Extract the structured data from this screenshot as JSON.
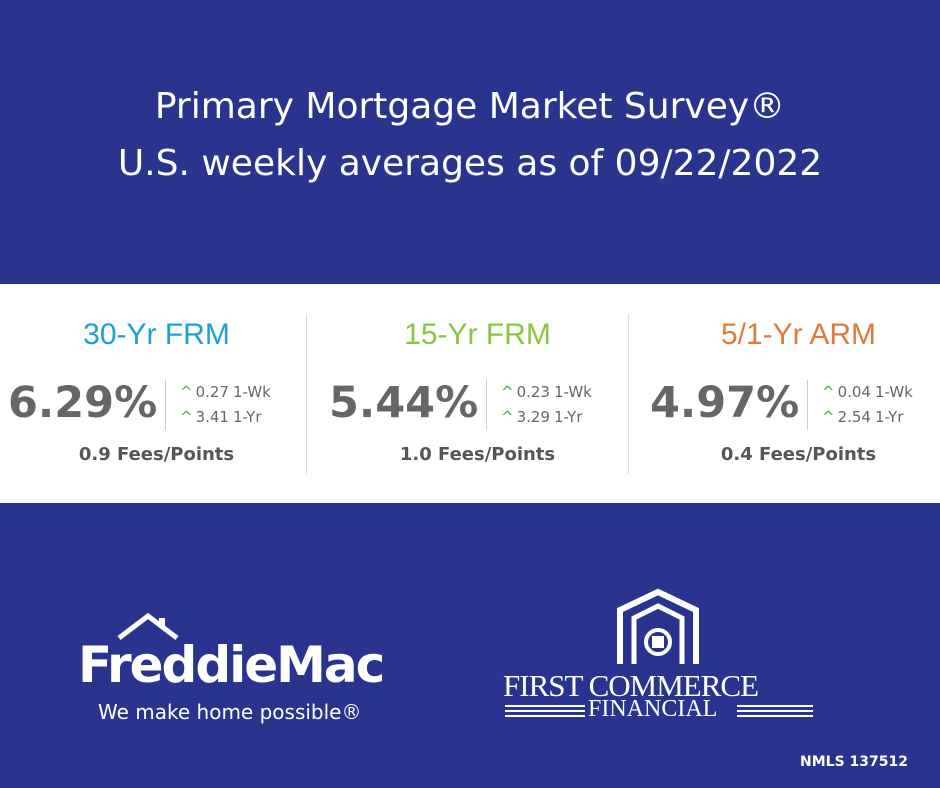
{
  "header": {
    "title": [
      "Primary Mortgage Market Survey®",
      "U.S. weekly averages as of 09/22/2022"
    ]
  },
  "cards": [
    {
      "name": "30-Yr FRM",
      "rate": "6.29%",
      "changes": [
        {
          "value": "0.27",
          "period": "1-Wk"
        },
        {
          "value": "3.41",
          "period": "1-Yr"
        }
      ],
      "fees": "0.9 Fees/Points"
    },
    {
      "name": "15-Yr FRM",
      "rate": "5.44%",
      "changes": [
        {
          "value": "0.23",
          "period": "1-Wk"
        },
        {
          "value": "3.29",
          "period": "1-Yr"
        }
      ],
      "fees": "1.0 Fees/Points"
    },
    {
      "name": "5/1-Yr ARM",
      "rate": "4.97%",
      "changes": [
        {
          "value": "0.04",
          "period": "1-Wk"
        },
        {
          "value": "2.54",
          "period": "1-Yr"
        }
      ],
      "fees": "0.4 Fees/Points"
    }
  ],
  "logos": {
    "freddie": {
      "name": "FreddieMac",
      "tagline": "We make home possible®"
    },
    "fcf": {
      "name": "FIRST COMMERCE",
      "sub": "FINANCIAL"
    }
  },
  "footer": {
    "nmls": "NMLS 137512"
  }
}
